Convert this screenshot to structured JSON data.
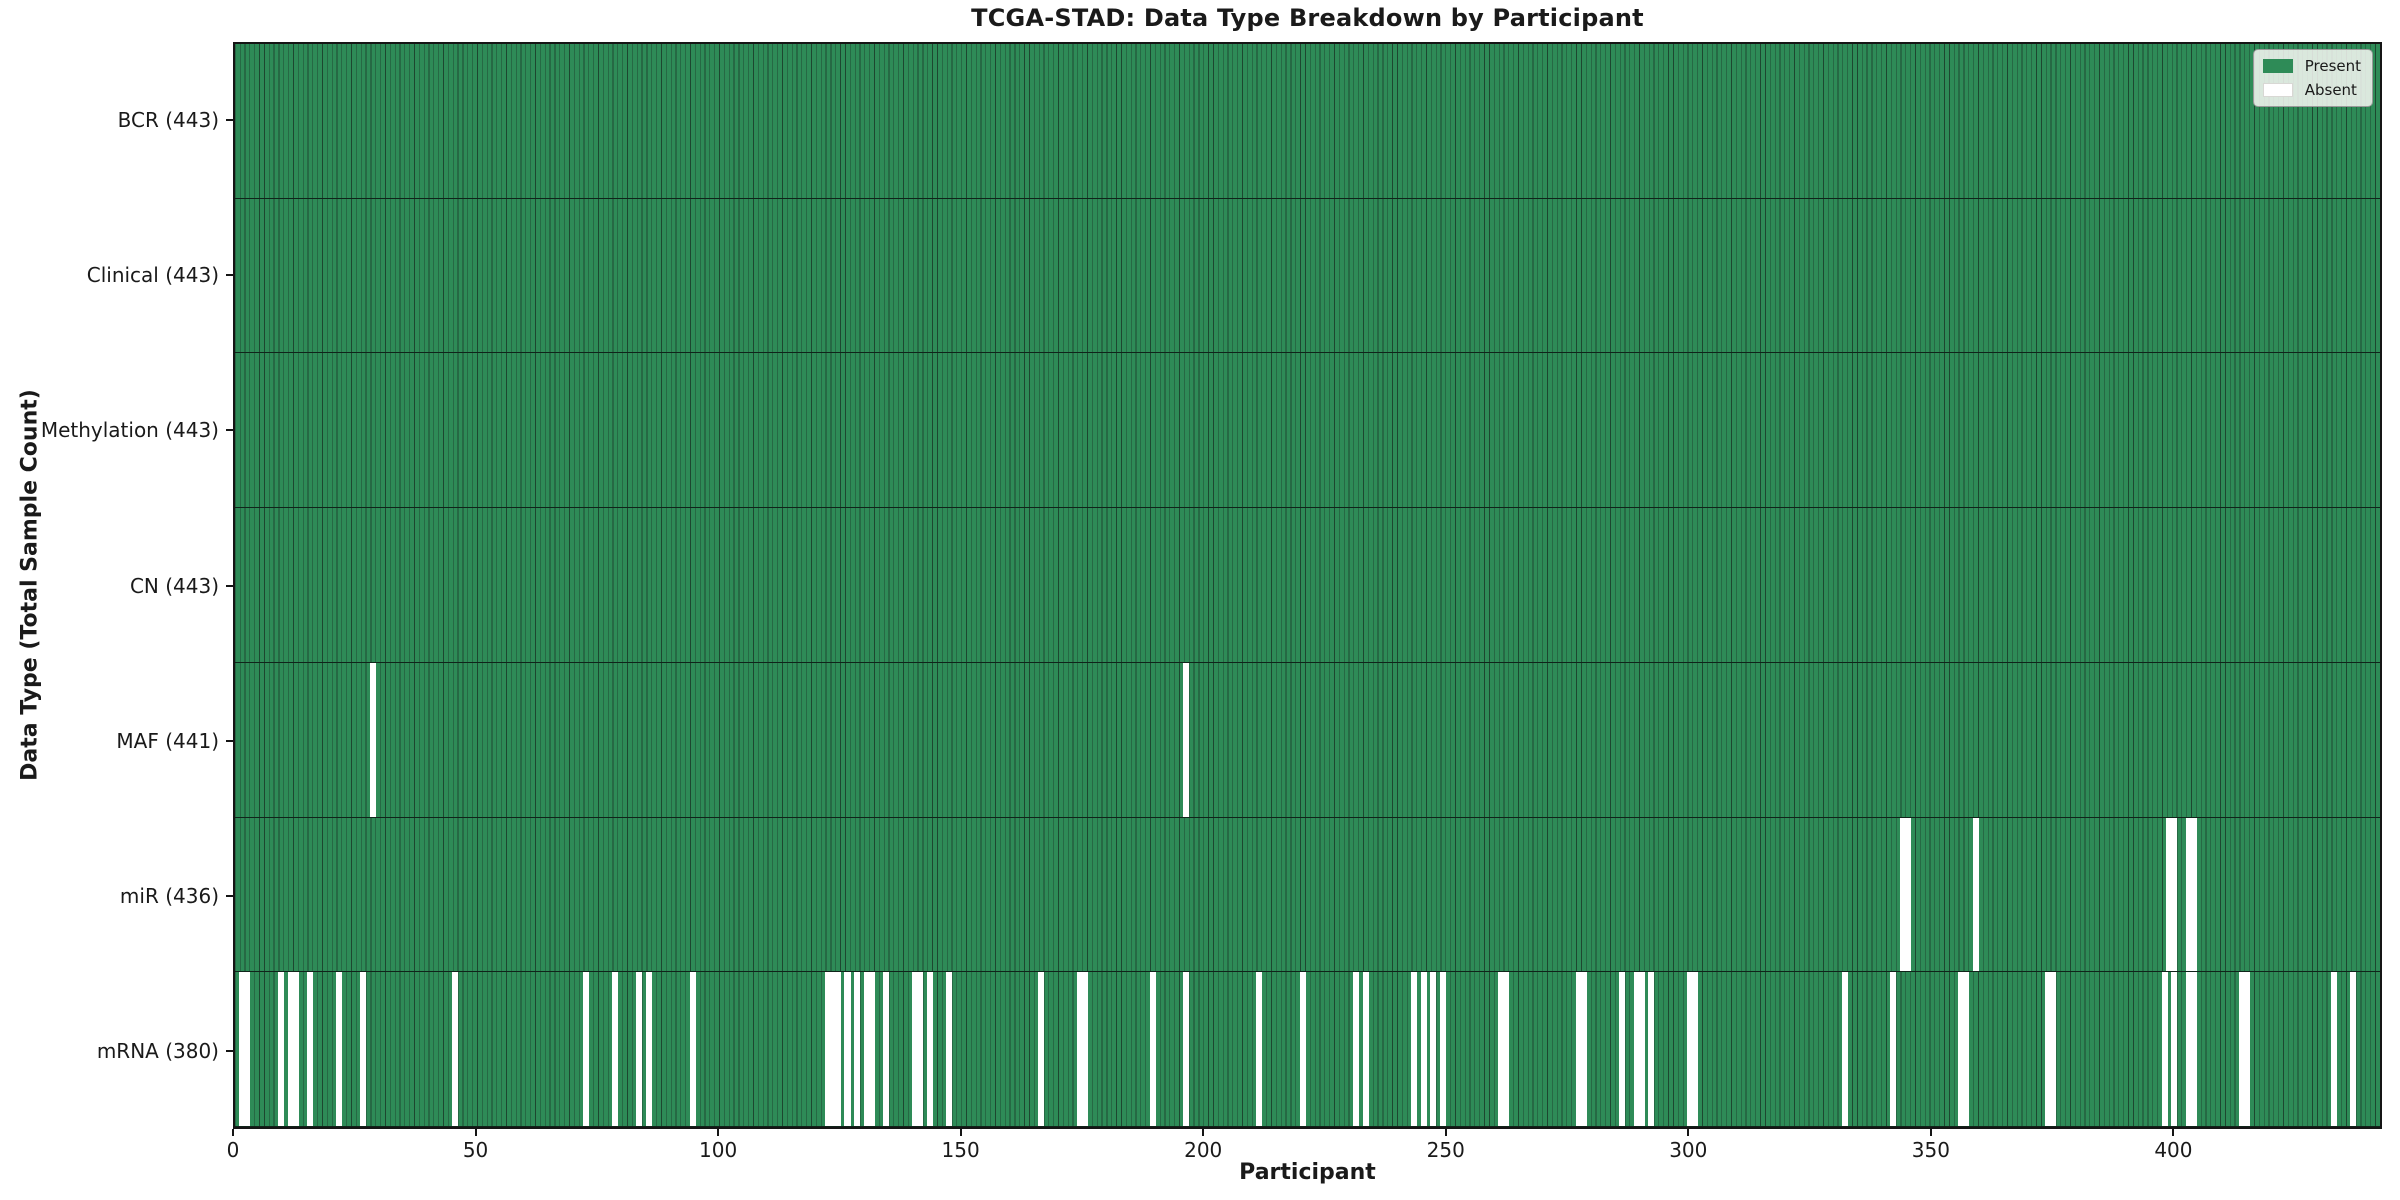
{
  "chart_data": {
    "type": "heatmap",
    "title": "TCGA-STAD: Data Type Breakdown by Participant",
    "xlabel": "Participant",
    "ylabel": "Data Type (Total Sample Count)",
    "n_participants": 443,
    "x_ticks": [
      0,
      50,
      100,
      150,
      200,
      250,
      300,
      350,
      400
    ],
    "grid": false,
    "legend": {
      "position": "upper right",
      "items": [
        {
          "label": "Present",
          "color": "#2e8b57"
        },
        {
          "label": "Absent",
          "color": "#ffffff"
        }
      ]
    },
    "colors": {
      "present": "#2e8b57",
      "absent": "#ffffff",
      "cell_edge": "#1d4730",
      "row_separator": "#10241a",
      "plot_border": "#151515",
      "legend_bg": "#f4f4f0",
      "text": "#1a1a1a"
    },
    "rows": [
      {
        "name": "BCR",
        "count": 443,
        "absent_participants": []
      },
      {
        "name": "Clinical",
        "count": 443,
        "absent_participants": []
      },
      {
        "name": "Methylation",
        "count": 443,
        "absent_participants": []
      },
      {
        "name": "CN",
        "count": 443,
        "absent_participants": []
      },
      {
        "name": "MAF",
        "count": 441,
        "absent_participants": [
          28,
          196
        ]
      },
      {
        "name": "miR",
        "count": 436,
        "absent_participants": [
          344,
          345,
          359,
          399,
          400,
          403,
          404
        ]
      },
      {
        "name": "mRNA",
        "count": 380,
        "absent_participants": [
          1,
          2,
          9,
          11,
          12,
          15,
          21,
          26,
          45,
          72,
          78,
          83,
          85,
          94,
          122,
          123,
          124,
          126,
          128,
          130,
          131,
          134,
          140,
          141,
          143,
          147,
          166,
          174,
          175,
          189,
          196,
          211,
          220,
          231,
          233,
          243,
          245,
          247,
          249,
          261,
          262,
          277,
          278,
          286,
          289,
          290,
          292,
          300,
          301,
          332,
          342,
          356,
          357,
          374,
          375,
          398,
          400,
          403,
          404,
          414,
          415,
          433,
          437
        ]
      }
    ]
  }
}
